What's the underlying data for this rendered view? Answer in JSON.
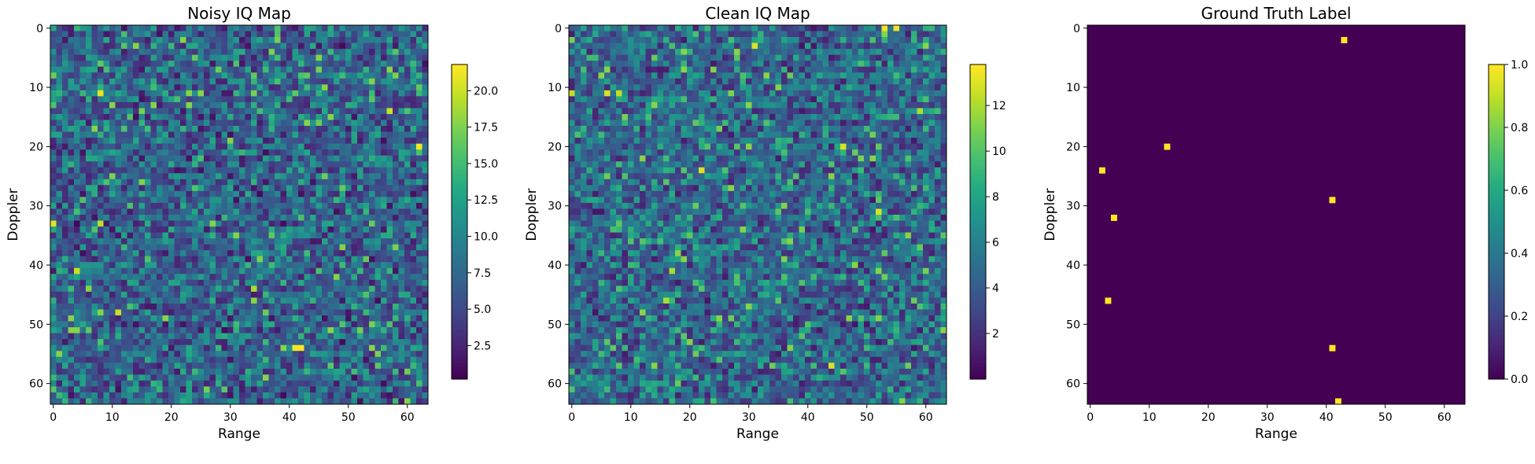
{
  "chart_data": [
    {
      "type": "heatmap",
      "title": "Noisy IQ Map",
      "xlabel": "Range",
      "ylabel": "Doppler",
      "rows": 64,
      "cols": 64,
      "x_ticks": [
        0,
        10,
        20,
        30,
        40,
        50,
        60
      ],
      "y_ticks": [
        0,
        10,
        20,
        30,
        40,
        50,
        60
      ],
      "vmin": 0.2,
      "vmax": 21.8,
      "colorbar_ticks": [
        2.5,
        5.0,
        7.5,
        10.0,
        12.5,
        15.0,
        17.5,
        20.0
      ],
      "colorbar_tick_labels": [
        "2.5",
        "5.0",
        "7.5",
        "10.0",
        "12.5",
        "15.0",
        "17.5",
        "20.0"
      ],
      "mean_value": 8.0,
      "peaks": [
        {
          "row": 11,
          "col": 8,
          "value": 21
        },
        {
          "row": 14,
          "col": 57,
          "value": 20
        },
        {
          "row": 20,
          "col": 62,
          "value": 21.5
        },
        {
          "row": 33,
          "col": 0,
          "value": 21
        },
        {
          "row": 33,
          "col": 8,
          "value": 19.5
        },
        {
          "row": 41,
          "col": 4,
          "value": 20
        },
        {
          "row": 44,
          "col": 34,
          "value": 19
        },
        {
          "row": 48,
          "col": 11,
          "value": 20
        },
        {
          "row": 54,
          "col": 41,
          "value": 21.5
        },
        {
          "row": 54,
          "col": 42,
          "value": 21.5
        },
        {
          "row": 16,
          "col": 45,
          "value": 17
        },
        {
          "row": 7,
          "col": 28,
          "value": 17
        },
        {
          "row": 58,
          "col": 60,
          "value": 17
        }
      ],
      "colormap": "viridis"
    },
    {
      "type": "heatmap",
      "title": "Clean IQ Map",
      "xlabel": "Range",
      "ylabel": "Doppler",
      "rows": 64,
      "cols": 64,
      "x_ticks": [
        0,
        10,
        20,
        30,
        40,
        50,
        60
      ],
      "y_ticks": [
        0,
        10,
        20,
        30,
        40,
        50,
        60
      ],
      "vmin": 0.0,
      "vmax": 13.8,
      "colorbar_ticks": [
        2,
        4,
        6,
        8,
        10,
        12
      ],
      "colorbar_tick_labels": [
        "2",
        "4",
        "6",
        "8",
        "10",
        "12"
      ],
      "mean_value": 5.0,
      "peaks": [
        {
          "row": 0,
          "col": 53,
          "value": 13.5
        },
        {
          "row": 0,
          "col": 55,
          "value": 13.5
        },
        {
          "row": 3,
          "col": 31,
          "value": 13
        },
        {
          "row": 11,
          "col": 0,
          "value": 12.5
        },
        {
          "row": 11,
          "col": 6,
          "value": 13
        },
        {
          "row": 11,
          "col": 8,
          "value": 12.5
        },
        {
          "row": 20,
          "col": 46,
          "value": 13
        },
        {
          "row": 24,
          "col": 22,
          "value": 13
        },
        {
          "row": 31,
          "col": 52,
          "value": 13
        },
        {
          "row": 41,
          "col": 17,
          "value": 12
        },
        {
          "row": 46,
          "col": 16,
          "value": 12
        },
        {
          "row": 57,
          "col": 44,
          "value": 13
        },
        {
          "row": 14,
          "col": 59,
          "value": 12
        }
      ],
      "colormap": "viridis"
    },
    {
      "type": "heatmap",
      "title": "Ground Truth Label",
      "xlabel": "Range",
      "ylabel": "Doppler",
      "rows": 64,
      "cols": 64,
      "x_ticks": [
        0,
        10,
        20,
        30,
        40,
        50,
        60
      ],
      "y_ticks": [
        0,
        10,
        20,
        30,
        40,
        50,
        60
      ],
      "vmin": 0.0,
      "vmax": 1.0,
      "colorbar_ticks": [
        0.0,
        0.2,
        0.4,
        0.6,
        0.8,
        1.0
      ],
      "colorbar_tick_labels": [
        "0.0",
        "0.2",
        "0.4",
        "0.6",
        "0.8",
        "1.0"
      ],
      "background_value": 0,
      "targets": [
        {
          "row": 2,
          "col": 43,
          "value": 1
        },
        {
          "row": 20,
          "col": 13,
          "value": 1
        },
        {
          "row": 24,
          "col": 2,
          "value": 1
        },
        {
          "row": 29,
          "col": 41,
          "value": 1
        },
        {
          "row": 32,
          "col": 4,
          "value": 1
        },
        {
          "row": 46,
          "col": 3,
          "value": 1
        },
        {
          "row": 54,
          "col": 41,
          "value": 1
        },
        {
          "row": 63,
          "col": 42,
          "value": 1
        }
      ],
      "colormap": "viridis"
    }
  ]
}
